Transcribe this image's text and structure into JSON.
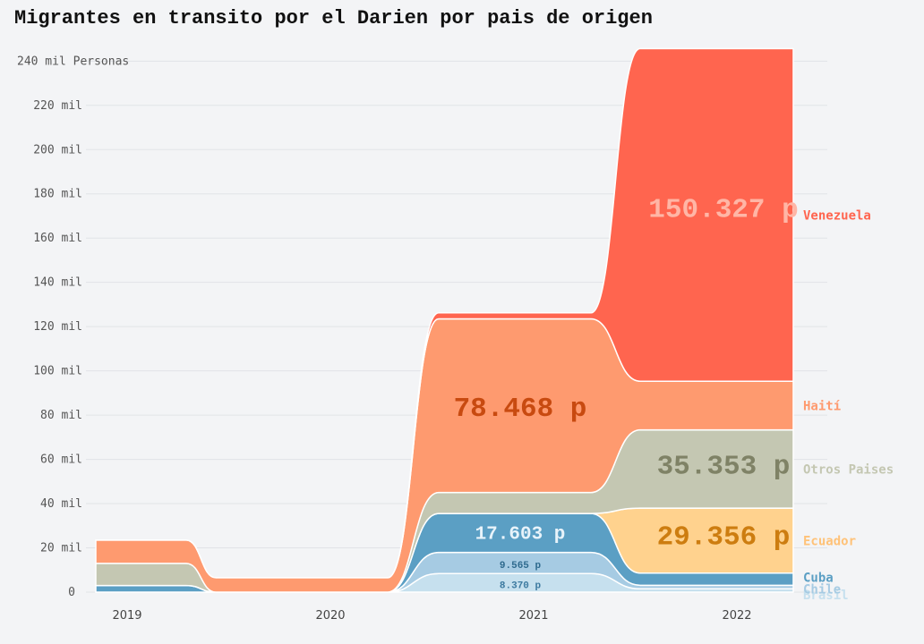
{
  "title": "Migrantes en transito por el Darien por pais de origen",
  "chart_data": {
    "type": "area",
    "stacked": true,
    "curve": "smooth-step",
    "unit_label": "Personas",
    "x": [
      "2019",
      "2020",
      "2021",
      "2022"
    ],
    "ylim": [
      0,
      247000
    ],
    "y_ticks": [
      0,
      20000,
      40000,
      60000,
      80000,
      100000,
      120000,
      140000,
      160000,
      180000,
      200000,
      220000,
      240000
    ],
    "y_tick_labels": [
      "0",
      "20 mil",
      "40 mil",
      "60 mil",
      "80 mil",
      "100 mil",
      "120 mil",
      "140 mil",
      "160 mil",
      "180 mil",
      "200 mil",
      "220 mil",
      "240 mil Personas"
    ],
    "grid": true,
    "series": [
      {
        "name": "Brasil",
        "color": "#c6e0ee",
        "values": [
          0,
          0,
          8370,
          1500
        ]
      },
      {
        "name": "Chile",
        "color": "#a6cbe3",
        "values": [
          0,
          0,
          9565,
          1600
        ]
      },
      {
        "name": "Cuba",
        "color": "#5b9fc4",
        "values": [
          3000,
          0,
          17603,
          5500
        ]
      },
      {
        "name": "Ecuador",
        "color": "#ffd28e",
        "values": [
          0,
          0,
          0,
          29356
        ]
      },
      {
        "name": "Otros Paises",
        "color": "#c4c7b2",
        "values": [
          10000,
          0,
          9500,
          35353
        ]
      },
      {
        "name": "Haití",
        "color": "#fe9a6f",
        "values": [
          10500,
          6500,
          78468,
          22000
        ]
      },
      {
        "name": "Venezuela",
        "color": "#ff654f",
        "values": [
          0,
          0,
          2700,
          150327
        ]
      }
    ],
    "series_label_colors": {
      "Brasil": "#c6e0ee",
      "Chile": "#a6cbe3",
      "Cuba": "#5b9fc4",
      "Ecuador": "#ffc278",
      "Otros Paises": "#c4c7b2",
      "Haití": "#fe9a6f",
      "Venezuela": "#ff654f"
    },
    "annotations": [
      {
        "text": "150.327 p",
        "x": "2022",
        "y": 174000,
        "size": "large",
        "color": "#ffb6a6"
      },
      {
        "text": "78.468 p",
        "x": "2021",
        "y": 84000,
        "size": "large",
        "color": "#c84a10"
      },
      {
        "text": "35.353 p",
        "x": "2022",
        "y": 58000,
        "size": "large",
        "color": "#7f8266"
      },
      {
        "text": "29.356 p",
        "x": "2022",
        "y": 26000,
        "size": "large",
        "color": "#cd7d10"
      },
      {
        "text": "17.603 p",
        "x": "2021",
        "y": 27000,
        "size": "medium",
        "color": "#e8f3fa"
      },
      {
        "text": "9.565 p",
        "x": "2021",
        "y": 12500,
        "size": "small",
        "color": "#2e6a8e"
      },
      {
        "text": "8.370 p",
        "x": "2021",
        "y": 3300,
        "size": "small",
        "color": "#3d7aa0"
      }
    ]
  }
}
